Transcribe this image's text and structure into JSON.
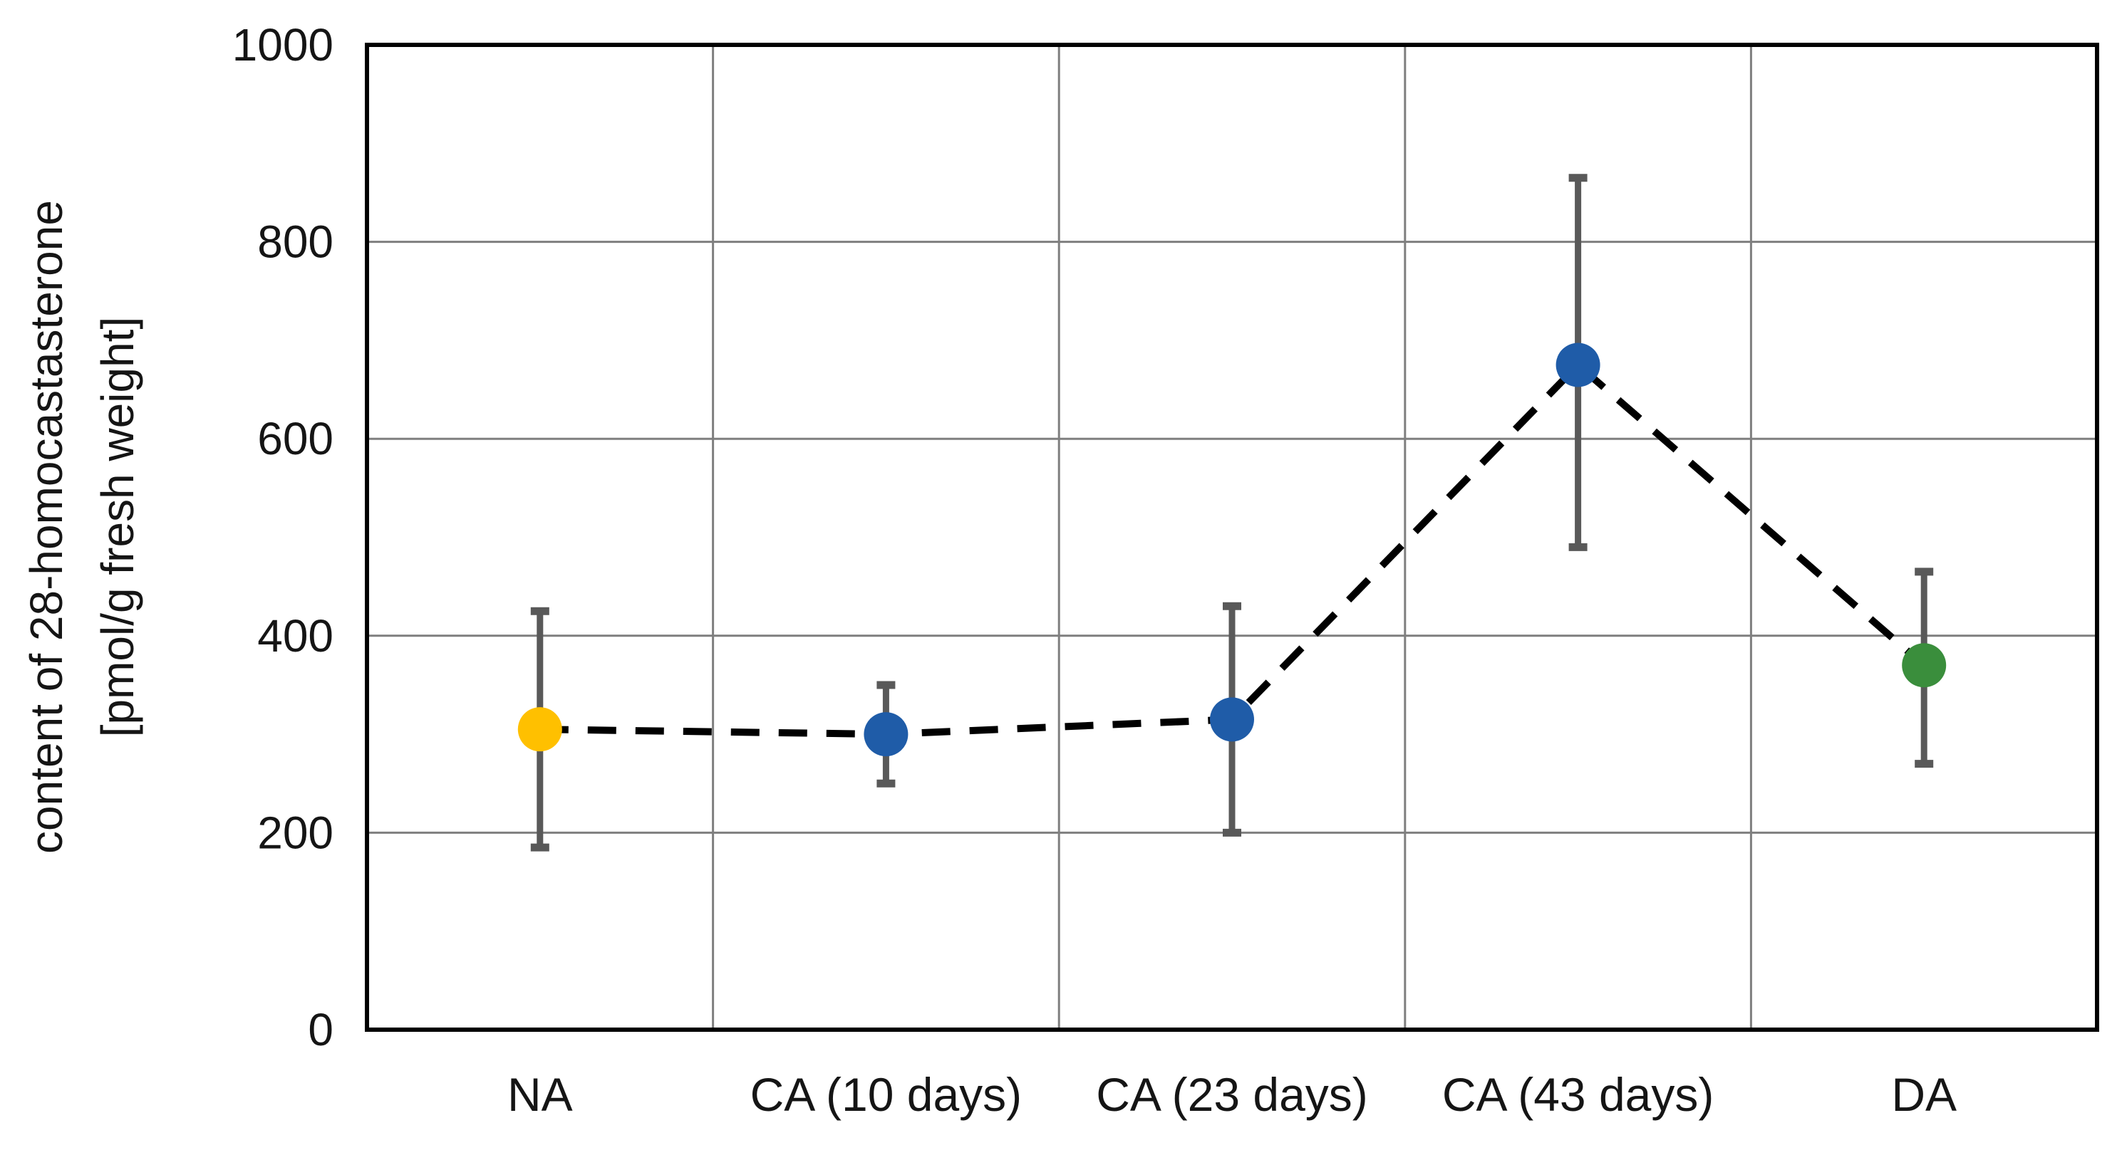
{
  "chart_data": {
    "type": "scatter",
    "title": "",
    "xlabel": "",
    "ylabel_line1": "content of 28-homocastasterone",
    "ylabel_line2": "[pmol/g fresh weight]",
    "categories": [
      "NA",
      "CA (10 days)",
      "CA (23 days)",
      "CA (43 days)",
      "DA"
    ],
    "yticks": [
      0,
      200,
      400,
      600,
      800,
      1000
    ],
    "ylim": [
      0,
      1000
    ],
    "grid": true,
    "legend": false,
    "series": [
      {
        "name": "28-homocastasterone content",
        "values": [
          305,
          300,
          315,
          675,
          370
        ],
        "error_upper": [
          425,
          350,
          430,
          865,
          465
        ],
        "error_lower": [
          185,
          250,
          200,
          490,
          270
        ],
        "point_colors": [
          "#FFC000",
          "#1F5CA8",
          "#1F5CA8",
          "#1F5CA8",
          "#3A8E3C"
        ],
        "line_style": "dashed",
        "line_color": "#000000"
      }
    ],
    "colors": {
      "gridline": "#7F7F7F",
      "plot_border": "#000000",
      "error_bar": "#595959",
      "tick_text": "#151515"
    }
  }
}
